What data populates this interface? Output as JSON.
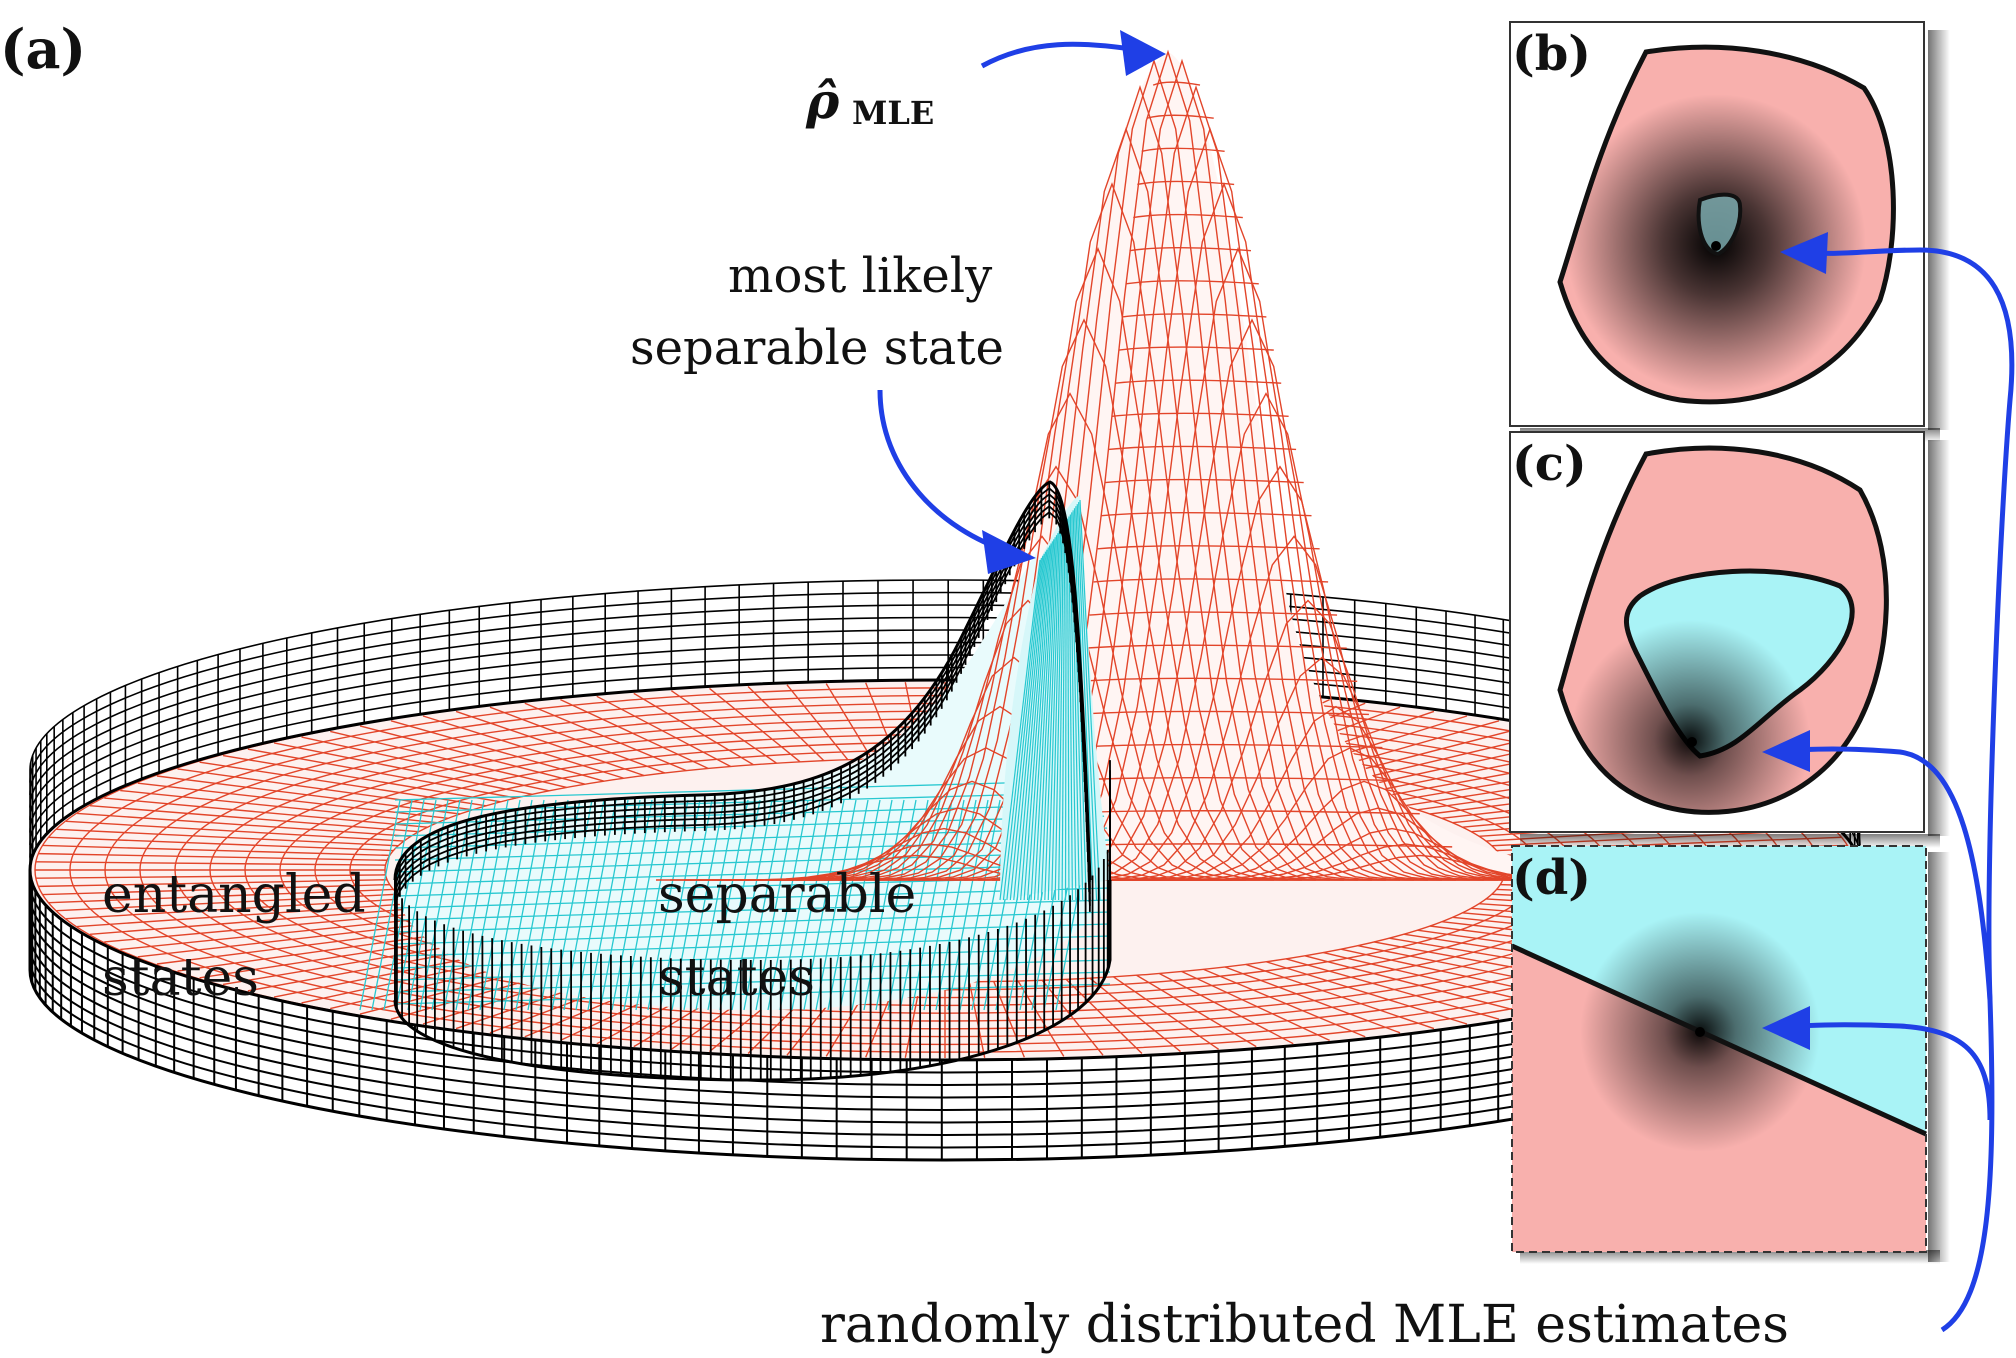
{
  "panels": {
    "a": "(a)",
    "b": "(b)",
    "c": "(c)",
    "d": "(d)"
  },
  "labels": {
    "rho_symbol": "ρ̂",
    "rho_subscript": "MLE",
    "most_likely_line1": "most likely",
    "most_likely_line2": "separable state",
    "entangled_line1": "entangled",
    "entangled_line2": "states",
    "separable_line1": "separable",
    "separable_line2": "states",
    "bottom_caption": "randomly distributed MLE estimates"
  },
  "colors": {
    "entangled_fill": "#f8b0ad",
    "separable_fill": "#a9f3f6",
    "entangled_mesh": "#e2452a",
    "separable_mesh": "#28c8d0",
    "wall": "#000000",
    "arrow": "#1f3fe6"
  }
}
